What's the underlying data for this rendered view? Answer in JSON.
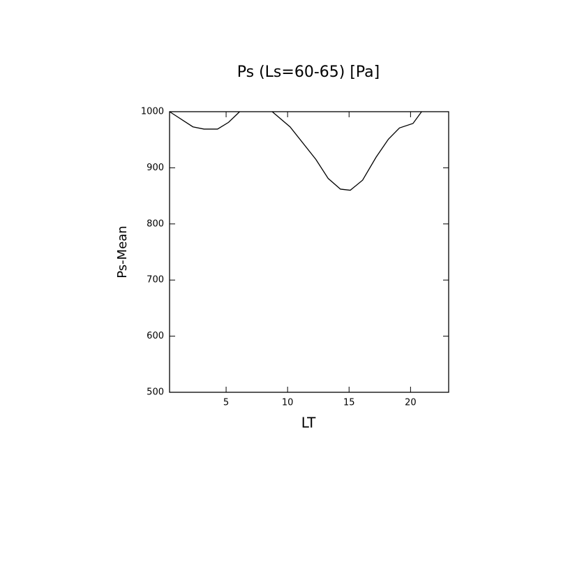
{
  "chart_data": {
    "type": "line",
    "title": "Ps (Ls=60-65) [Pa]",
    "x_label": "LT",
    "y_label": "Ps-Mean",
    "x": [
      0.4,
      2.3,
      3.2,
      4.3,
      5.2,
      6.1,
      7.5,
      8.75,
      10.2,
      12.3,
      13.3,
      14.3,
      15.1,
      16.1,
      17.2,
      18.2,
      19.1,
      20.2,
      20.9
    ],
    "series": [
      {
        "name": "Ps-Mean",
        "color": "#000000",
        "values": [
          1000,
          973,
          969,
          969,
          981,
          1000,
          null,
          1000,
          973,
          915,
          881,
          862,
          860,
          878,
          919,
          951,
          971,
          979,
          1000
        ]
      }
    ],
    "xlim": [
      0.4,
      23.1
    ],
    "ylim": [
      500,
      1000
    ],
    "xticks": [
      5,
      10,
      15,
      20
    ],
    "yticks": [
      500,
      600,
      700,
      800,
      900,
      1000
    ]
  }
}
